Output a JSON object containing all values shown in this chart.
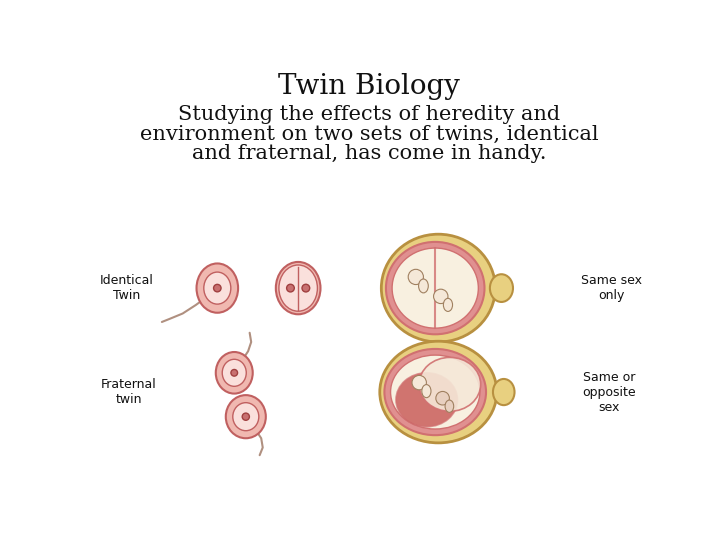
{
  "title": "Twin Biology",
  "subtitle_line1": "Studying the effects of heredity and",
  "subtitle_line2": "environment on two sets of twins, identical",
  "subtitle_line3": "and fraternal, has come in handy.",
  "label_identical": "Identical\nTwin",
  "label_same_sex": "Same sex\nonly",
  "label_fraternal": "Fraternal\ntwin",
  "label_same_or": "Same or\nopposite\nsex",
  "bg_color": "#ffffff",
  "text_color": "#111111",
  "title_fontsize": 20,
  "subtitle_fontsize": 15,
  "label_fontsize": 9,
  "outer_egg_color": "#f0b8b0",
  "inner_egg_color": "#fae0dc",
  "nucleus_color": "#c87070",
  "uterus_outer_color": "#e8d080",
  "uterus_inner_color": "#e09090",
  "uterus_edge_color": "#b89040",
  "neck_color": "#e8d080",
  "fetus_color": "#f5e8d8",
  "membrane_color": "#d07070",
  "fraternal_red_color": "#c03030"
}
